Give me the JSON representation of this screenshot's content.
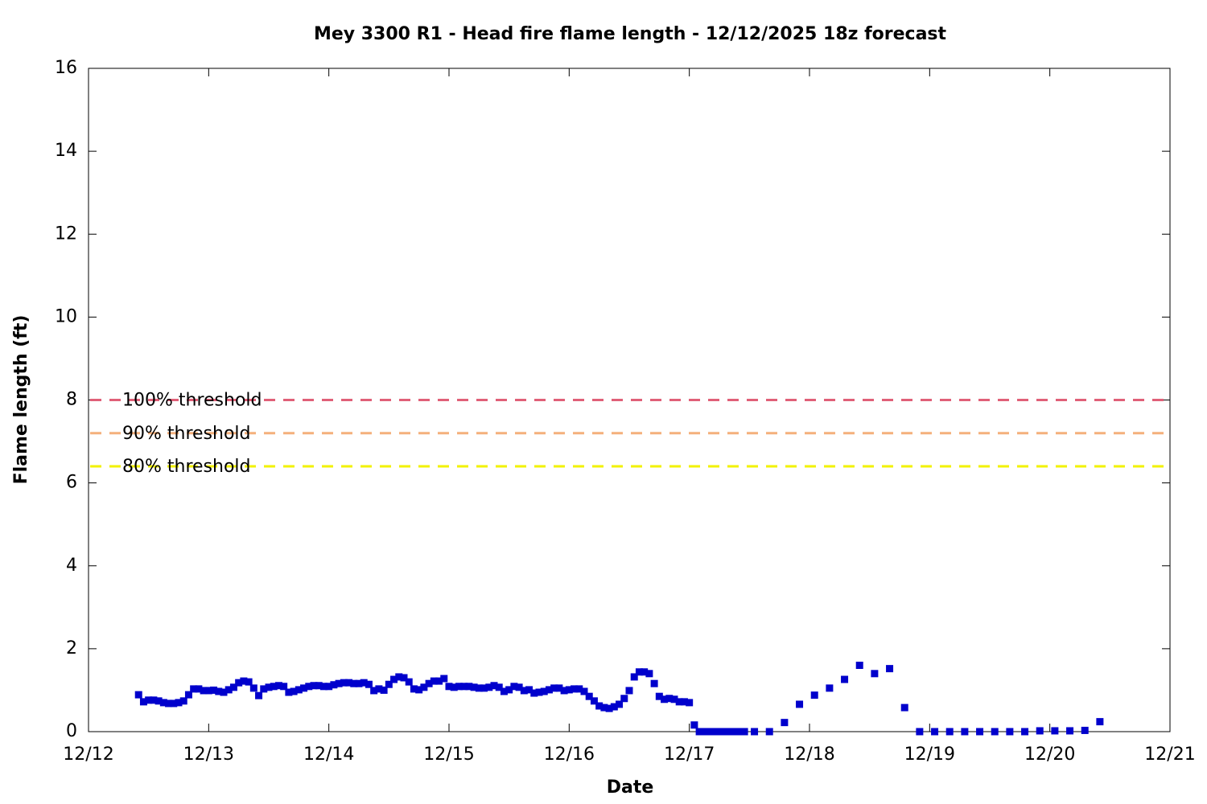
{
  "chart_data": {
    "type": "scatter",
    "title": "Mey 3300 R1 - Head fire flame length - 12/12/2025 18z forecast",
    "x_label": "Date",
    "y_label": "Flame length (ft)",
    "xlim": [
      0,
      216
    ],
    "xticks": [
      {
        "value": 0,
        "label": "12/12"
      },
      {
        "value": 24,
        "label": "12/13"
      },
      {
        "value": 48,
        "label": "12/14"
      },
      {
        "value": 72,
        "label": "12/15"
      },
      {
        "value": 96,
        "label": "12/16"
      },
      {
        "value": 120,
        "label": "12/17"
      },
      {
        "value": 144,
        "label": "12/18"
      },
      {
        "value": 168,
        "label": "12/19"
      },
      {
        "value": 192,
        "label": "12/20"
      },
      {
        "value": 216,
        "label": "12/21"
      }
    ],
    "ylim": [
      0,
      16
    ],
    "yticks": [
      0,
      2,
      4,
      6,
      8,
      10,
      12,
      14,
      16
    ],
    "color": "#0000cc",
    "x": [
      10,
      11,
      12,
      13,
      14,
      15,
      16,
      17,
      18,
      19,
      20,
      21,
      22,
      23,
      24,
      25,
      26,
      27,
      28,
      29,
      30,
      31,
      32,
      33,
      34,
      35,
      36,
      37,
      38,
      39,
      40,
      41,
      42,
      43,
      44,
      45,
      46,
      47,
      48,
      49,
      50,
      51,
      52,
      53,
      54,
      55,
      56,
      57,
      58,
      59,
      60,
      61,
      62,
      63,
      64,
      65,
      66,
      67,
      68,
      69,
      70,
      71,
      72,
      73,
      74,
      75,
      76,
      77,
      78,
      79,
      80,
      81,
      82,
      83,
      84,
      85,
      86,
      87,
      88,
      89,
      90,
      91,
      92,
      93,
      94,
      95,
      96,
      97,
      98,
      99,
      100,
      101,
      102,
      103,
      104,
      105,
      106,
      107,
      108,
      109,
      110,
      111,
      112,
      113,
      114,
      115,
      116,
      117,
      118,
      119,
      120,
      121,
      122,
      123,
      124,
      125,
      126,
      127,
      128,
      129,
      130,
      131,
      133,
      136,
      139,
      142,
      145,
      148,
      151,
      154,
      157,
      160,
      163,
      166,
      169,
      172,
      175,
      178,
      181,
      184,
      187,
      190,
      193,
      196,
      199,
      202
    ],
    "values": [
      0.89,
      0.72,
      0.76,
      0.76,
      0.74,
      0.7,
      0.68,
      0.68,
      0.7,
      0.74,
      0.89,
      1.03,
      1.03,
      0.99,
      0.99,
      1.0,
      0.97,
      0.95,
      1.01,
      1.07,
      1.18,
      1.22,
      1.2,
      1.05,
      0.87,
      1.03,
      1.07,
      1.09,
      1.11,
      1.09,
      0.95,
      0.97,
      1.01,
      1.05,
      1.09,
      1.11,
      1.11,
      1.09,
      1.09,
      1.13,
      1.16,
      1.18,
      1.18,
      1.16,
      1.16,
      1.18,
      1.14,
      0.99,
      1.03,
      1.0,
      1.14,
      1.26,
      1.32,
      1.3,
      1.2,
      1.03,
      1.01,
      1.07,
      1.16,
      1.22,
      1.22,
      1.28,
      1.09,
      1.07,
      1.09,
      1.09,
      1.09,
      1.07,
      1.05,
      1.05,
      1.07,
      1.11,
      1.07,
      0.97,
      1.01,
      1.09,
      1.07,
      0.99,
      1.01,
      0.93,
      0.95,
      0.97,
      1.01,
      1.05,
      1.05,
      0.99,
      1.01,
      1.03,
      1.03,
      0.97,
      0.85,
      0.74,
      0.62,
      0.58,
      0.56,
      0.6,
      0.66,
      0.8,
      0.99,
      1.32,
      1.44,
      1.44,
      1.4,
      1.16,
      0.85,
      0.78,
      0.8,
      0.78,
      0.72,
      0.72,
      0.7,
      0.16,
      0,
      0,
      0,
      0,
      0,
      0,
      0,
      0,
      0,
      0,
      0,
      0,
      0.22,
      0.66,
      0.88,
      1.05,
      1.26,
      1.6,
      1.4,
      1.52,
      0.58,
      0,
      0,
      0,
      0,
      0,
      0,
      0,
      0,
      0.02,
      0.02,
      0.02,
      0.03,
      0.24
    ],
    "thresholds": [
      {
        "name": "100% threshold",
        "value": 8,
        "color": "#e06078"
      },
      {
        "name": "90% threshold",
        "value": 7.2,
        "color": "#f4b07c"
      },
      {
        "name": "80% threshold",
        "value": 6.4,
        "color": "#f2f200"
      }
    ]
  }
}
